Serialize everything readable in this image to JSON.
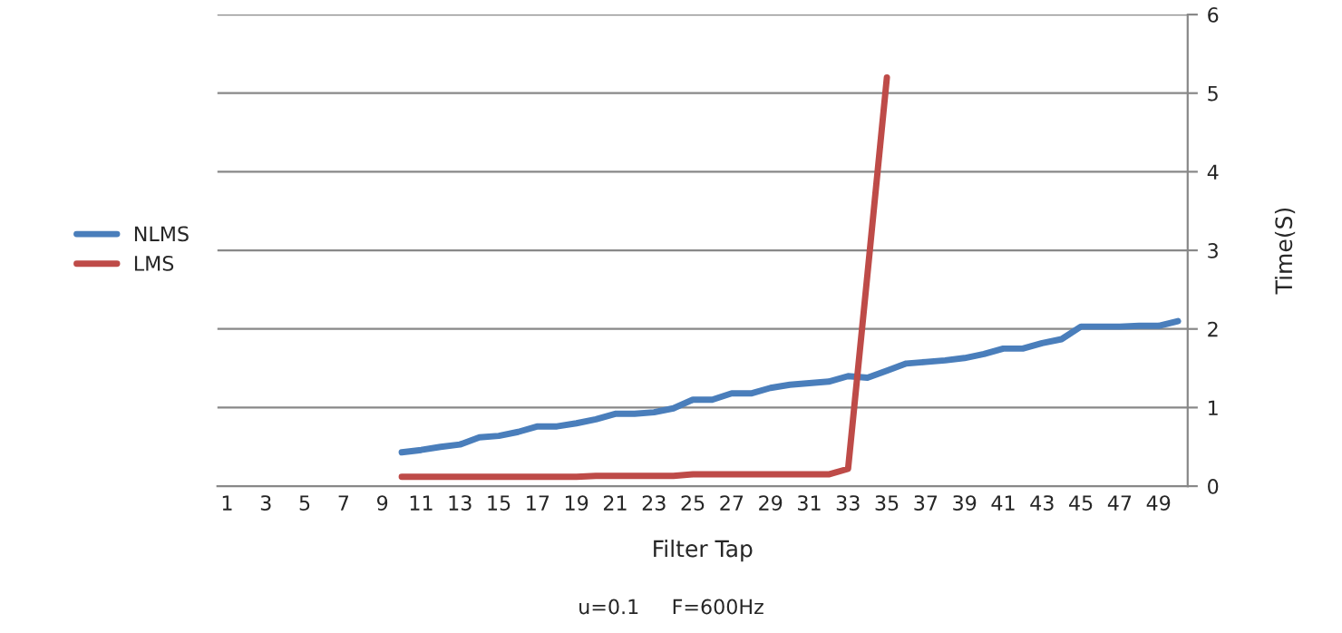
{
  "chart_data": {
    "type": "line",
    "xlabel": "Filter Tap",
    "ylabel": "Time(S)",
    "annotations": [
      "u=0.1     F=600Hz"
    ],
    "categories": [
      "1",
      null,
      "3",
      null,
      "5",
      null,
      "7",
      null,
      "9",
      null,
      "11",
      null,
      "13",
      null,
      "15",
      null,
      "17",
      null,
      "19",
      null,
      "21",
      null,
      "23",
      null,
      "25",
      null,
      "27",
      null,
      "29",
      null,
      "31",
      null,
      "33",
      null,
      "35",
      null,
      "37",
      null,
      "39",
      null,
      "41",
      null,
      "43",
      null,
      "45",
      null,
      "47",
      null,
      "49",
      null
    ],
    "series": [
      {
        "name": "NLMS",
        "color": "#4a7ebb",
        "values": [
          null,
          null,
          null,
          null,
          null,
          null,
          null,
          null,
          null,
          0.43,
          0.46,
          0.5,
          0.53,
          0.62,
          0.64,
          0.69,
          0.76,
          0.76,
          0.8,
          0.85,
          0.92,
          0.92,
          0.94,
          0.99,
          1.1,
          1.1,
          1.18,
          1.18,
          1.25,
          1.29,
          1.31,
          1.33,
          1.4,
          1.38,
          1.47,
          1.56,
          1.58,
          1.6,
          1.63,
          1.68,
          1.75,
          1.75,
          1.82,
          1.87,
          2.03,
          2.03,
          2.03,
          2.04,
          2.04,
          2.1
        ]
      },
      {
        "name": "LMS",
        "color": "#be4b48",
        "values": [
          null,
          null,
          null,
          null,
          null,
          null,
          null,
          null,
          null,
          0.12,
          0.12,
          0.12,
          0.12,
          0.12,
          0.12,
          0.12,
          0.12,
          0.12,
          0.12,
          0.13,
          0.13,
          0.13,
          0.13,
          0.13,
          0.15,
          0.15,
          0.15,
          0.15,
          0.15,
          0.15,
          0.15,
          0.15,
          0.22,
          2.7,
          5.2,
          null,
          null,
          null,
          null,
          null,
          null,
          null,
          null,
          null,
          null,
          null,
          null,
          null,
          null,
          null
        ]
      }
    ],
    "ylim": [
      0,
      6
    ],
    "yticks": [
      0,
      1,
      2,
      3,
      4,
      5,
      6
    ],
    "grid": "y",
    "legend": "left",
    "marker": "none",
    "line_style": "solid"
  }
}
